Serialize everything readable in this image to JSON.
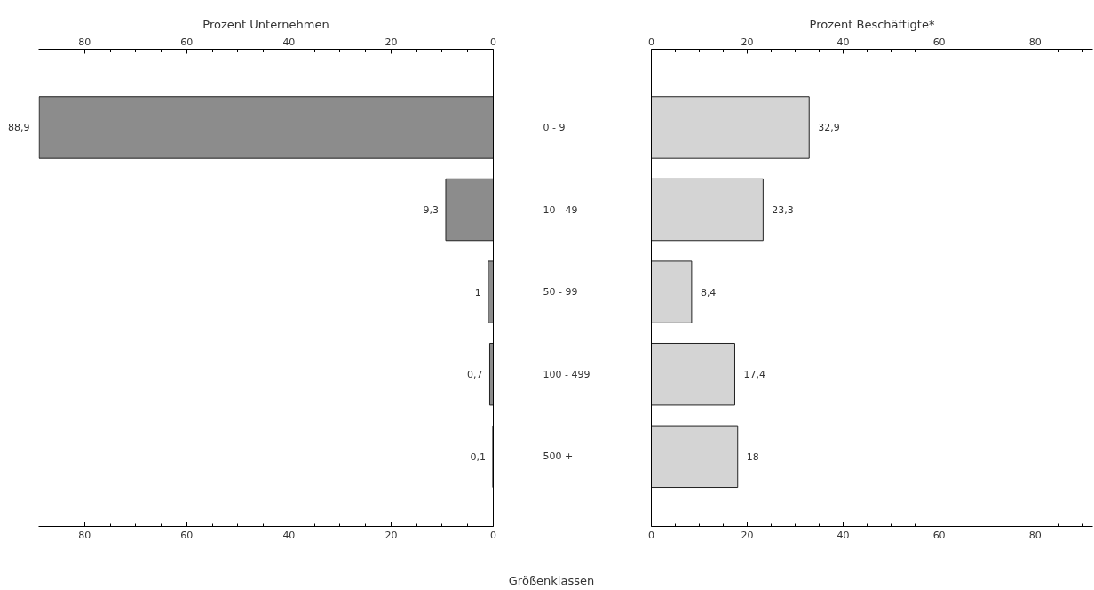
{
  "chart_data": [
    {
      "type": "bar",
      "orientation": "horizontal",
      "x2label": "Prozent Unternehmen",
      "categories": [
        "0 - 9",
        "10 - 49",
        "50 - 99",
        "100 - 499",
        "500 +"
      ],
      "values": [
        88.9,
        9.3,
        1,
        0.7,
        0.1
      ],
      "value_labels": [
        "88,9",
        "9,3",
        "1",
        "0,7",
        "0,1"
      ],
      "color": "#8c8c8c",
      "xlim": [
        89,
        0
      ],
      "xticks": [
        0,
        {
          "value": 5,
          "label": null
        },
        {
          "value": 10,
          "label": null
        },
        {
          "value": 15,
          "label": null
        },
        20,
        {
          "value": 25,
          "label": null
        },
        {
          "value": 30,
          "label": null
        },
        {
          "value": 35,
          "label": null
        },
        40,
        {
          "value": 45,
          "label": null
        },
        {
          "value": 50,
          "label": null
        },
        {
          "value": 55,
          "label": null
        },
        60,
        {
          "value": 65,
          "label": null
        },
        {
          "value": 70,
          "label": null
        },
        {
          "value": 75,
          "label": null
        },
        80,
        {
          "value": 85,
          "label": null
        }
      ],
      "x2lim": [
        89,
        0
      ],
      "x2ticks": [
        0,
        {
          "value": 5,
          "label": null
        },
        {
          "value": 10,
          "label": null
        },
        {
          "value": 15,
          "label": null
        },
        20,
        {
          "value": 25,
          "label": null
        },
        {
          "value": 30,
          "label": null
        },
        {
          "value": 35,
          "label": null
        },
        40,
        {
          "value": 45,
          "label": null
        },
        {
          "value": 50,
          "label": null
        },
        {
          "value": 55,
          "label": null
        },
        60,
        {
          "value": 65,
          "label": null
        },
        {
          "value": 70,
          "label": null
        },
        {
          "value": 75,
          "label": null
        },
        80,
        {
          "value": 85,
          "label": null
        }
      ],
      "grid": false
    },
    {
      "type": "bar",
      "orientation": "horizontal",
      "x2label": "Prozent Beschäftigte*",
      "values": [
        32.9,
        23.3,
        8.4,
        17.4,
        18
      ],
      "value_labels": [
        "32,9",
        "23,3",
        "8,4",
        "17,4",
        "18"
      ],
      "color": "#d4d4d4",
      "xlim": [
        0,
        92
      ],
      "xticks": [
        0,
        {
          "value": 5,
          "label": null
        },
        {
          "value": 10,
          "label": null
        },
        {
          "value": 15,
          "label": null
        },
        20,
        {
          "value": 25,
          "label": null
        },
        {
          "value": 30,
          "label": null
        },
        {
          "value": 35,
          "label": null
        },
        40,
        {
          "value": 45,
          "label": null
        },
        {
          "value": 50,
          "label": null
        },
        {
          "value": 55,
          "label": null
        },
        60,
        {
          "value": 65,
          "label": null
        },
        {
          "value": 70,
          "label": null
        },
        {
          "value": 75,
          "label": null
        },
        80,
        {
          "value": 85,
          "label": null
        },
        {
          "value": 90,
          "label": null
        }
      ],
      "x2lim": [
        0,
        92
      ],
      "x2ticks": [
        0,
        {
          "value": 5,
          "label": null
        },
        {
          "value": 10,
          "label": null
        },
        {
          "value": 15,
          "label": null
        },
        20,
        {
          "value": 25,
          "label": null
        },
        {
          "value": 30,
          "label": null
        },
        {
          "value": 35,
          "label": null
        },
        40,
        {
          "value": 45,
          "label": null
        },
        {
          "value": 50,
          "label": null
        },
        {
          "value": 55,
          "label": null
        },
        60,
        {
          "value": 65,
          "label": null
        },
        {
          "value": 70,
          "label": null
        },
        {
          "value": 75,
          "label": null
        },
        80,
        {
          "value": 85,
          "label": null
        },
        {
          "value": 90,
          "label": null
        }
      ],
      "annotations": [
        "Größenklassen"
      ],
      "tick_labels": "x",
      "grid": false
    }
  ]
}
